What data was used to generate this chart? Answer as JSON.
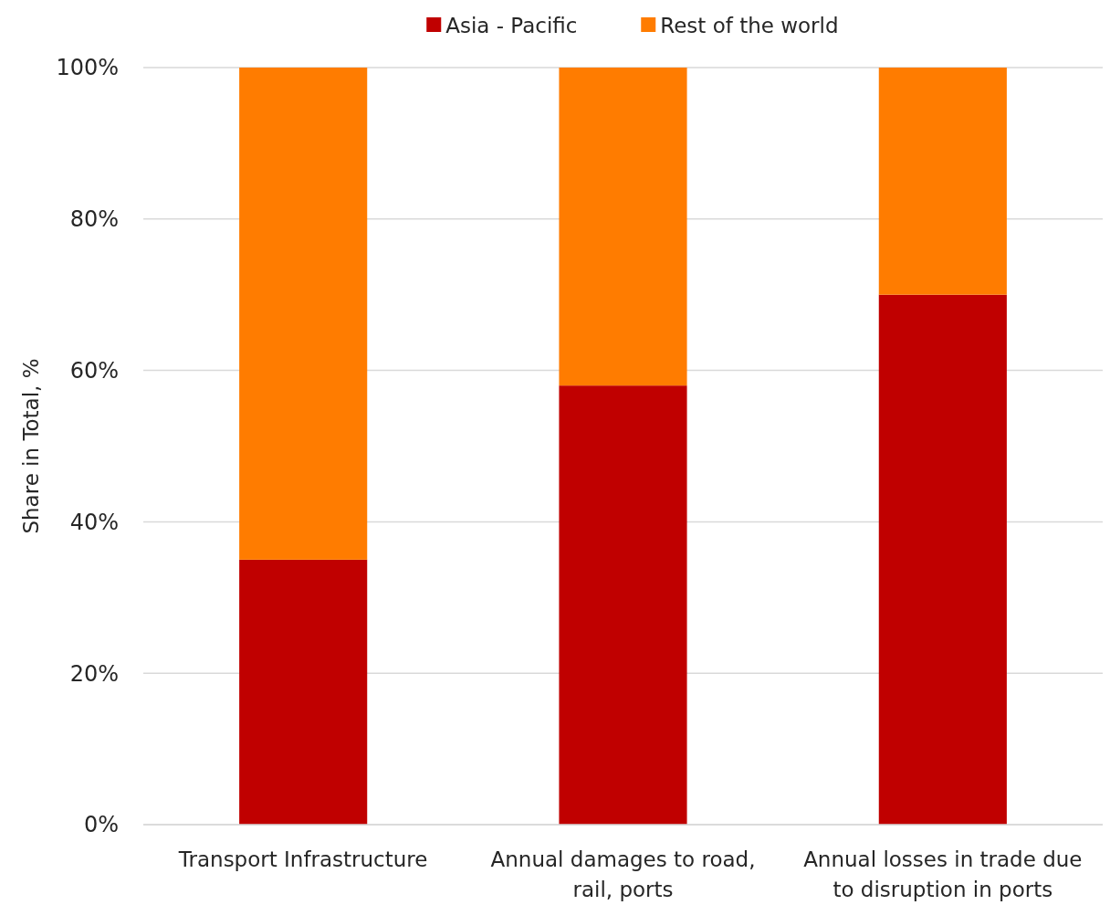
{
  "chart_data": {
    "type": "bar",
    "stacked": true,
    "ylabel": "Share in Total, %",
    "categories": [
      "Transport Infrastructure",
      "Annual damages to road, rail, ports",
      "Annual losses in trade due to disruption in ports"
    ],
    "series": [
      {
        "name": "Asia - Pacific",
        "color": "#c00000",
        "values": [
          35,
          58,
          70
        ]
      },
      {
        "name": "Rest of the world",
        "color": "#ff7c00",
        "values": [
          65,
          42,
          30
        ]
      }
    ],
    "ylim": [
      0,
      100
    ],
    "yticks": [
      {
        "value": 0,
        "label": "0%"
      },
      {
        "value": 20,
        "label": "20%"
      },
      {
        "value": 40,
        "label": "40%"
      },
      {
        "value": 60,
        "label": "60%"
      },
      {
        "value": 80,
        "label": "80%"
      },
      {
        "value": 100,
        "label": "100%"
      }
    ],
    "grid": "y",
    "legend": "top"
  }
}
